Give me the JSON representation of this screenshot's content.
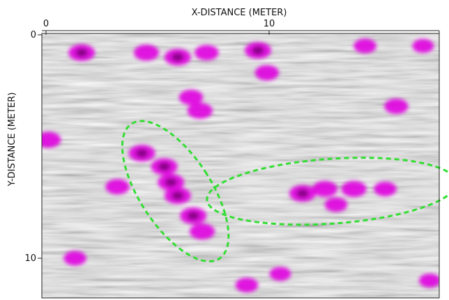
{
  "chart_data": {
    "type": "heatmap",
    "title": "",
    "xlabel": "X-DISTANCE (METER)",
    "ylabel": "Y-DISTANCE (METER)",
    "x_axis_position": "top",
    "y_axis_inverted": true,
    "xlim": [
      0,
      17.8
    ],
    "ylim": [
      0,
      11.7
    ],
    "x_ticks": [
      {
        "value": 0,
        "label": "0"
      },
      {
        "value": 10,
        "label": "10"
      }
    ],
    "y_ticks": [
      {
        "value": 0,
        "label": "0"
      },
      {
        "value": 10,
        "label": "10"
      }
    ],
    "grid": false,
    "colors": {
      "background_low": "#ffffff",
      "background_high": "#3a3a3a",
      "anomaly": "#e000e0",
      "anomaly_strong": "#7a0078",
      "highlight_outline": "#33dd33"
    },
    "anomaly_zones": [
      {
        "shape": "ellipse",
        "center_x": 5.8,
        "center_y": 7.0,
        "half_width_m": 1.6,
        "half_height_m": 3.6,
        "rotation_deg": -33
      },
      {
        "shape": "ellipse",
        "center_x": 12.8,
        "center_y": 7.0,
        "half_width_m": 5.6,
        "half_height_m": 1.45,
        "rotation_deg": -4
      }
    ],
    "hotspots": [
      {
        "x": 1.6,
        "y": 0.8,
        "strength": 1.0
      },
      {
        "x": 4.5,
        "y": 0.8,
        "strength": 0.9
      },
      {
        "x": 5.9,
        "y": 1.0,
        "strength": 1.0
      },
      {
        "x": 7.2,
        "y": 0.8,
        "strength": 0.8
      },
      {
        "x": 9.5,
        "y": 0.7,
        "strength": 1.0
      },
      {
        "x": 9.9,
        "y": 1.7,
        "strength": 0.8
      },
      {
        "x": 14.3,
        "y": 0.5,
        "strength": 0.7
      },
      {
        "x": 16.9,
        "y": 0.5,
        "strength": 0.6
      },
      {
        "x": 6.5,
        "y": 2.8,
        "strength": 0.8
      },
      {
        "x": 6.9,
        "y": 3.4,
        "strength": 0.9
      },
      {
        "x": 15.7,
        "y": 3.2,
        "strength": 0.8
      },
      {
        "x": 0.1,
        "y": 4.7,
        "strength": 0.9
      },
      {
        "x": 4.3,
        "y": 5.3,
        "strength": 1.0
      },
      {
        "x": 5.3,
        "y": 5.9,
        "strength": 1.0
      },
      {
        "x": 5.6,
        "y": 6.6,
        "strength": 1.0
      },
      {
        "x": 5.9,
        "y": 7.2,
        "strength": 1.0
      },
      {
        "x": 6.6,
        "y": 8.1,
        "strength": 1.0
      },
      {
        "x": 7.0,
        "y": 8.8,
        "strength": 0.9
      },
      {
        "x": 3.2,
        "y": 6.8,
        "strength": 0.8
      },
      {
        "x": 11.5,
        "y": 7.1,
        "strength": 1.0
      },
      {
        "x": 12.5,
        "y": 6.9,
        "strength": 0.9
      },
      {
        "x": 13.8,
        "y": 6.9,
        "strength": 0.9
      },
      {
        "x": 15.2,
        "y": 6.9,
        "strength": 0.7
      },
      {
        "x": 13.0,
        "y": 7.6,
        "strength": 0.7
      },
      {
        "x": 1.3,
        "y": 10.0,
        "strength": 0.7
      },
      {
        "x": 9.0,
        "y": 11.2,
        "strength": 0.7
      },
      {
        "x": 10.5,
        "y": 10.7,
        "strength": 0.6
      },
      {
        "x": 17.2,
        "y": 11.0,
        "strength": 0.6
      }
    ]
  }
}
